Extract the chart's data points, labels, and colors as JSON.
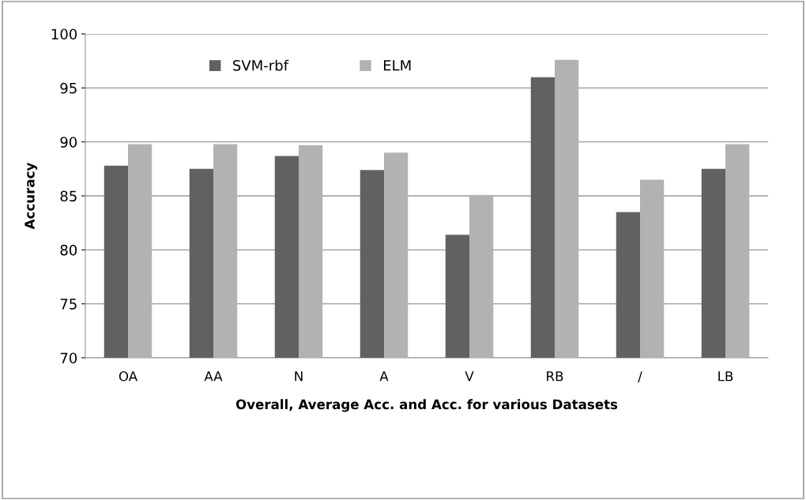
{
  "chart_data": {
    "type": "bar",
    "xlabel": "Overall, Average Acc. and Acc. for various Datasets",
    "ylabel": "Accuracy",
    "categories": [
      "OA",
      "AA",
      "N",
      "A",
      "V",
      "RB",
      "/",
      "LB"
    ],
    "series": [
      {
        "name": "SVM-rbf",
        "color": "#616161",
        "values": [
          87.8,
          87.5,
          88.7,
          87.4,
          81.4,
          96.0,
          83.5,
          87.5
        ]
      },
      {
        "name": "ELM",
        "color": "#b2b2b2",
        "values": [
          89.8,
          89.8,
          89.7,
          89.0,
          85.1,
          97.6,
          86.5,
          89.8
        ]
      }
    ],
    "ylim": [
      70,
      100
    ],
    "yticks": [
      70,
      75,
      80,
      85,
      90,
      95,
      100
    ],
    "grid": "y",
    "legend": "top"
  }
}
